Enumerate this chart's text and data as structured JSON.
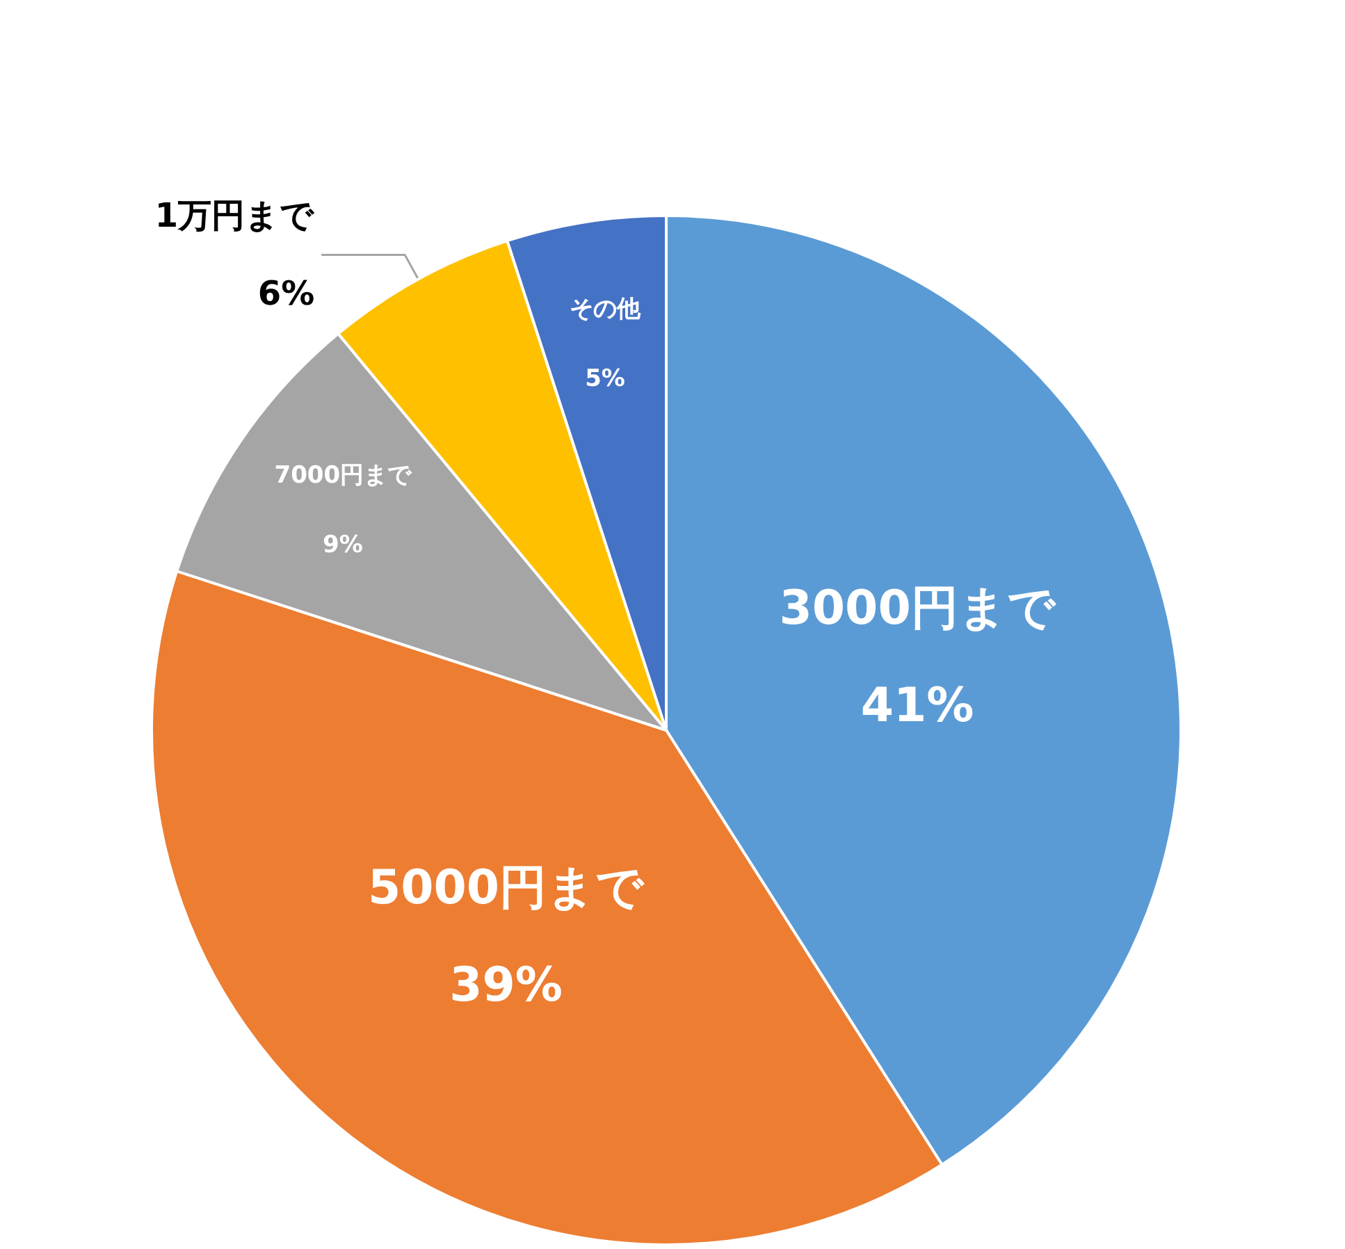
{
  "chart_data": {
    "type": "pie",
    "categories": [
      "3000円まで",
      "5000円まで",
      "7000円まで",
      "1万円まで",
      "その他"
    ],
    "values": [
      41,
      39,
      9,
      6,
      5
    ],
    "value_labels": [
      "41%",
      "39%",
      "9%",
      "6%",
      "5%"
    ],
    "colors": [
      "#5b9bd5",
      "#ed7d31",
      "#a5a5a5",
      "#ffc000",
      "#4472c4"
    ],
    "legend": false
  }
}
